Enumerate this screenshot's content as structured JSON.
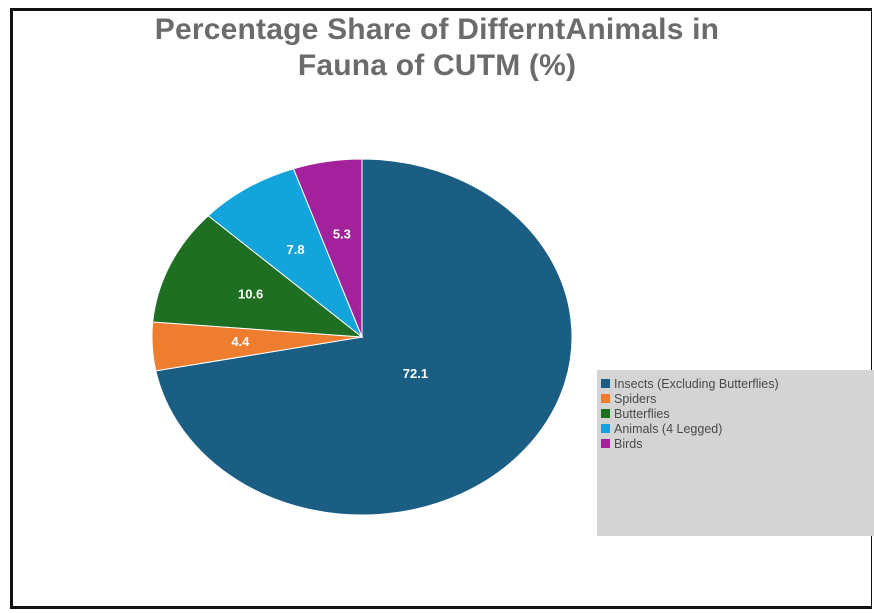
{
  "chart_data": {
    "type": "pie",
    "title_lines": [
      "Percentage Share of DifferntAnimals in",
      "Fauna of CUTM (%)"
    ],
    "categories": [
      "Insects (Excluding Butterflies)",
      "Spiders",
      "Butterflies",
      "Animals (4 Legged)",
      "Birds"
    ],
    "values": [
      72.1,
      4.4,
      10.6,
      7.8,
      5.3
    ],
    "labels": [
      "72.1",
      "4.4",
      "10.6",
      "7.8",
      "5.3"
    ],
    "colors": [
      "#1b5e84",
      "#ef7d2f",
      "#1f6f22",
      "#14a4dc",
      "#a3229c"
    ],
    "start": "12 o'clock",
    "direction": "clockwise",
    "legend_position": "right"
  }
}
